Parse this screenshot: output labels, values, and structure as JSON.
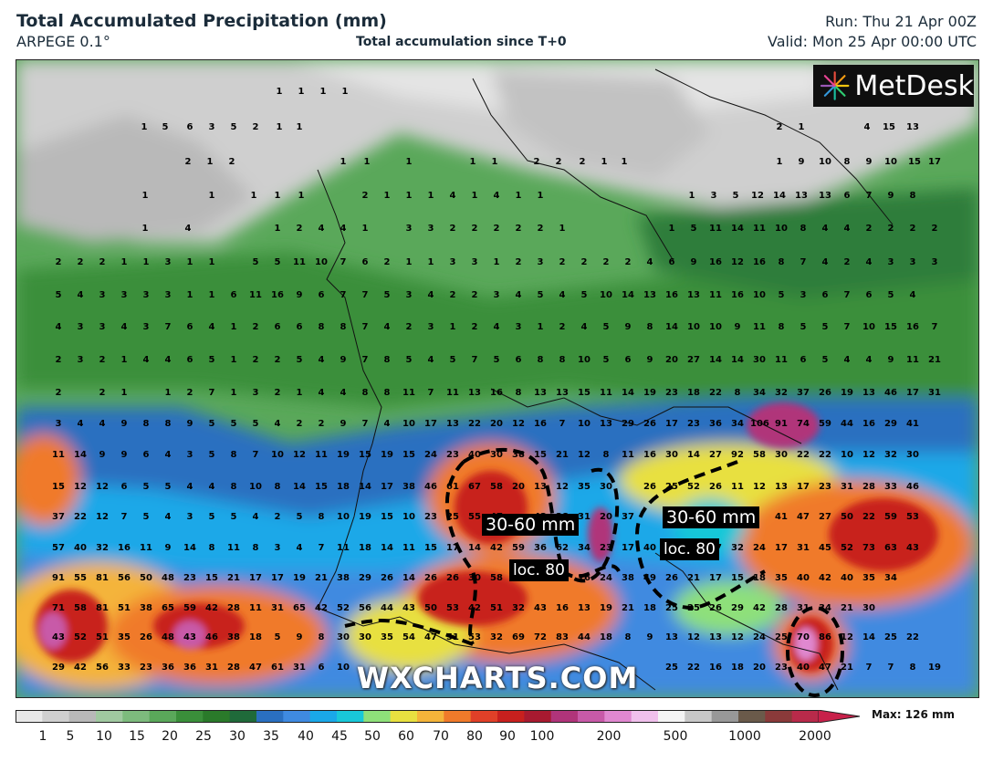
{
  "header": {
    "title": "Total Accumulated Precipitation (mm)",
    "model": "ARPEGE 0.1°",
    "subtitle": "Total accumulation since T+0",
    "run": "Run: Thu 21 Apr 00Z",
    "valid": "Valid: Mon 25 Apr 00:00 UTC"
  },
  "logo": {
    "text": "MetDesk",
    "icon": "metdesk-starburst-icon"
  },
  "watermark": "WXCHARTS.COM",
  "callouts": [
    {
      "id": "west",
      "range": "30-60 mm",
      "local": "loc. 80"
    },
    {
      "id": "east",
      "range": "30-60 mm",
      "local": "loc. 80"
    }
  ],
  "legend": {
    "ticks": [
      "1",
      "5",
      "10",
      "15",
      "20",
      "25",
      "30",
      "35",
      "40",
      "45",
      "50",
      "60",
      "70",
      "80",
      "90",
      "100",
      "200",
      "500",
      "1000",
      "2000"
    ],
    "max_label": "Max: 126 mm",
    "colors": [
      "#e8e8e8",
      "#cfcfcf",
      "#b8b8b8",
      "#a0c9a0",
      "#7dbb7d",
      "#5aa85a",
      "#3a8f3a",
      "#2a7a2a",
      "#1f6a3a",
      "#2a6fc0",
      "#3f8ae0",
      "#1aa8e8",
      "#19c8d8",
      "#8ee07a",
      "#e8e040",
      "#f4b43a",
      "#f07a2a",
      "#e04028",
      "#c8201e",
      "#a81a30",
      "#b0347a",
      "#c85aa8",
      "#e088d0",
      "#f0c0ec",
      "#f4f4f4",
      "#c8c8c8",
      "#989898",
      "#6a5a4a",
      "#8a3a3a",
      "#b82a4a"
    ]
  },
  "station_values": {
    "r1": [
      "1",
      "1",
      "1",
      "1"
    ],
    "r2": [
      "1",
      "5",
      "6",
      "3",
      "5",
      "2",
      "1",
      "1",
      "2",
      "1",
      "4",
      "15",
      "13"
    ],
    "r3": [
      "2",
      "1",
      "2",
      "1",
      "1",
      "1",
      "1",
      "1",
      "2",
      "2",
      "2",
      "1",
      "1",
      "1",
      "9",
      "10",
      "8",
      "9",
      "10",
      "15",
      "17"
    ],
    "r4": [
      "1",
      "1",
      "1",
      "1",
      "1",
      "2",
      "1",
      "1",
      "1",
      "4",
      "1",
      "4",
      "1",
      "1",
      "1",
      "3",
      "5",
      "12",
      "14",
      "13",
      "13",
      "6",
      "7",
      "9",
      "8"
    ],
    "r5": [
      "1",
      "4",
      "1",
      "2",
      "4",
      "4",
      "1",
      "3",
      "3",
      "2",
      "2",
      "2",
      "2",
      "2",
      "1",
      "1",
      "5",
      "11",
      "14",
      "11",
      "10",
      "8",
      "4",
      "4",
      "2",
      "2",
      "2",
      "2"
    ],
    "r6": [
      "2",
      "2",
      "2",
      "1",
      "1",
      "3",
      "1",
      "1",
      "5",
      "5",
      "11",
      "10",
      "7",
      "6",
      "2",
      "1",
      "1",
      "3",
      "3",
      "1",
      "2",
      "3",
      "2",
      "2",
      "2",
      "2",
      "4",
      "6",
      "9",
      "16",
      "12",
      "16",
      "8",
      "7",
      "4",
      "2",
      "4",
      "3",
      "3",
      "3"
    ],
    "r7": [
      "5",
      "4",
      "3",
      "3",
      "3",
      "3",
      "1",
      "1",
      "6",
      "11",
      "16",
      "9",
      "6",
      "7",
      "7",
      "5",
      "3",
      "4",
      "2",
      "2",
      "3",
      "4",
      "5",
      "4",
      "5",
      "10",
      "14",
      "13",
      "16",
      "13",
      "11",
      "16",
      "10",
      "5",
      "3",
      "6",
      "7",
      "6",
      "5",
      "4"
    ],
    "r8": [
      "4",
      "3",
      "3",
      "4",
      "3",
      "7",
      "6",
      "4",
      "1",
      "2",
      "6",
      "6",
      "8",
      "8",
      "7",
      "4",
      "2",
      "3",
      "1",
      "2",
      "4",
      "3",
      "1",
      "2",
      "4",
      "5",
      "9",
      "8",
      "14",
      "10",
      "10",
      "9",
      "11",
      "8",
      "5",
      "5",
      "7",
      "10",
      "15",
      "16",
      "7"
    ],
    "r9": [
      "2",
      "3",
      "2",
      "1",
      "4",
      "4",
      "6",
      "5",
      "1",
      "2",
      "2",
      "5",
      "4",
      "9",
      "7",
      "8",
      "5",
      "4",
      "5",
      "7",
      "5",
      "6",
      "8",
      "8",
      "10",
      "5",
      "6",
      "9",
      "20",
      "27",
      "14",
      "14",
      "30",
      "11",
      "6",
      "5",
      "4",
      "4",
      "9",
      "11",
      "21"
    ],
    "r10": [
      "2",
      "2",
      "1",
      "1",
      "2",
      "7",
      "1",
      "3",
      "2",
      "1",
      "4",
      "4",
      "8",
      "8",
      "11",
      "7",
      "11",
      "13",
      "16",
      "8",
      "13",
      "13",
      "15",
      "11",
      "14",
      "19",
      "23",
      "18",
      "22",
      "8",
      "34",
      "32",
      "37",
      "26",
      "19",
      "13",
      "46",
      "17",
      "31"
    ],
    "r11": [
      "3",
      "4",
      "4",
      "9",
      "8",
      "8",
      "9",
      "5",
      "5",
      "5",
      "4",
      "2",
      "2",
      "9",
      "7",
      "4",
      "10",
      "17",
      "13",
      "22",
      "20",
      "12",
      "16",
      "7",
      "10",
      "13",
      "29",
      "26",
      "17",
      "23",
      "36",
      "34",
      "106",
      "91",
      "74",
      "59",
      "44",
      "16",
      "29",
      "41"
    ],
    "r12": [
      "11",
      "14",
      "9",
      "9",
      "6",
      "4",
      "3",
      "5",
      "8",
      "7",
      "10",
      "12",
      "11",
      "19",
      "15",
      "19",
      "15",
      "24",
      "23",
      "40",
      "30",
      "38",
      "15",
      "21",
      "12",
      "8",
      "11",
      "16",
      "30",
      "14",
      "27",
      "92",
      "58",
      "30",
      "22",
      "22",
      "10",
      "12",
      "32",
      "30"
    ],
    "r13": [
      "15",
      "12",
      "12",
      "6",
      "5",
      "5",
      "4",
      "4",
      "8",
      "10",
      "8",
      "14",
      "15",
      "18",
      "14",
      "17",
      "38",
      "46",
      "61",
      "67",
      "58",
      "20",
      "13",
      "12",
      "35",
      "30",
      "26",
      "25",
      "52",
      "26",
      "11",
      "12",
      "13",
      "17",
      "23",
      "31",
      "28",
      "33",
      "46"
    ],
    "r14": [
      "37",
      "22",
      "12",
      "7",
      "5",
      "4",
      "3",
      "5",
      "5",
      "4",
      "2",
      "5",
      "8",
      "10",
      "19",
      "15",
      "10",
      "23",
      "25",
      "55",
      "47",
      "42",
      "28",
      "31",
      "20",
      "37",
      "41",
      "47",
      "27",
      "50",
      "22",
      "59",
      "53"
    ],
    "r15": [
      "57",
      "40",
      "32",
      "16",
      "11",
      "9",
      "14",
      "8",
      "11",
      "8",
      "3",
      "4",
      "7",
      "11",
      "18",
      "14",
      "11",
      "15",
      "17",
      "14",
      "42",
      "59",
      "36",
      "62",
      "34",
      "23",
      "17",
      "40",
      "47",
      "32",
      "24",
      "17",
      "31",
      "45",
      "52",
      "73",
      "63",
      "43"
    ],
    "r16": [
      "91",
      "55",
      "81",
      "56",
      "50",
      "48",
      "23",
      "15",
      "21",
      "17",
      "17",
      "19",
      "21",
      "38",
      "29",
      "26",
      "14",
      "26",
      "26",
      "30",
      "58",
      "36",
      "16",
      "24",
      "38",
      "49",
      "26",
      "21",
      "17",
      "15",
      "18",
      "35",
      "40",
      "42",
      "40",
      "35",
      "34"
    ],
    "r17": [
      "71",
      "58",
      "81",
      "51",
      "38",
      "65",
      "59",
      "42",
      "28",
      "11",
      "31",
      "65",
      "42",
      "52",
      "56",
      "44",
      "43",
      "50",
      "53",
      "42",
      "51",
      "32",
      "43",
      "16",
      "13",
      "19",
      "21",
      "18",
      "25",
      "25",
      "26",
      "29",
      "42",
      "28",
      "31",
      "34",
      "21",
      "30"
    ],
    "r18": [
      "43",
      "52",
      "51",
      "35",
      "26",
      "48",
      "43",
      "46",
      "38",
      "18",
      "5",
      "9",
      "8",
      "30",
      "30",
      "35",
      "54",
      "47",
      "51",
      "53",
      "32",
      "69",
      "72",
      "83",
      "44",
      "18",
      "8",
      "9",
      "13",
      "12",
      "13",
      "12",
      "24",
      "25",
      "70",
      "86",
      "12",
      "14",
      "25",
      "22"
    ],
    "r19": [
      "29",
      "42",
      "56",
      "33",
      "23",
      "36",
      "36",
      "31",
      "28",
      "47",
      "61",
      "31",
      "6",
      "10",
      "25",
      "22",
      "16",
      "18",
      "20",
      "23",
      "40",
      "47",
      "21",
      "7",
      "7",
      "8",
      "19"
    ]
  }
}
